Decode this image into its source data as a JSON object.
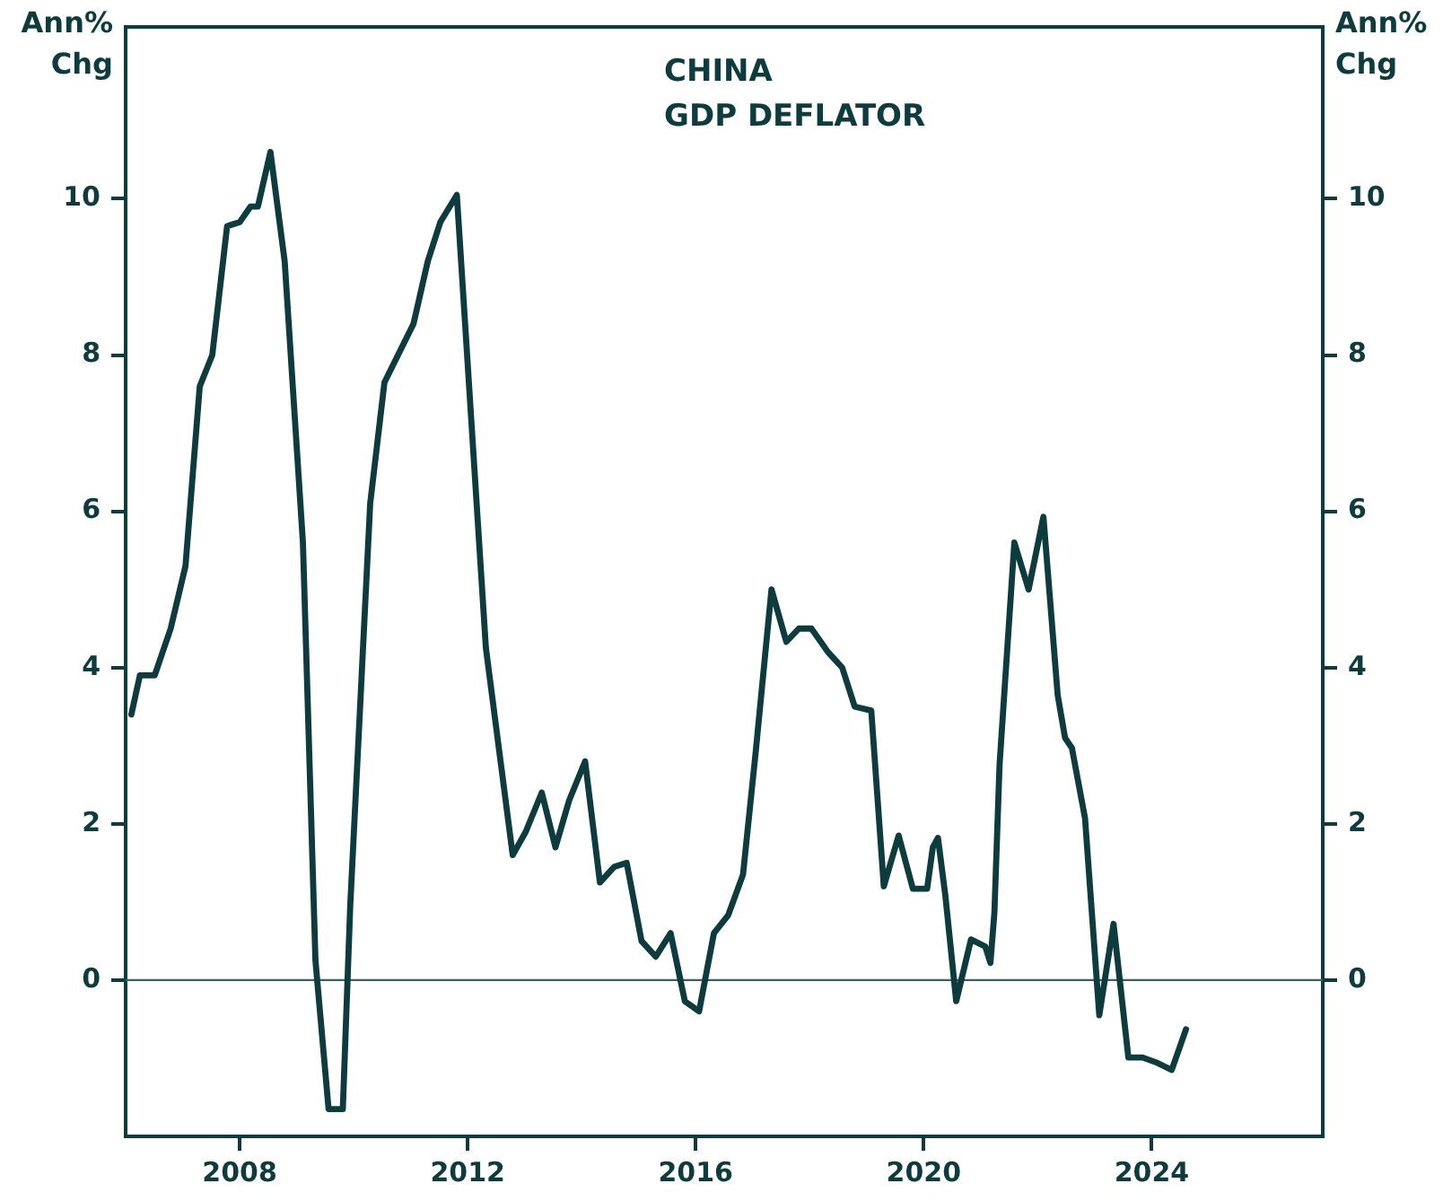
{
  "chart_data": {
    "type": "line",
    "title": "CHINA\nGDP DEFLATOR",
    "ylabel": "Ann%\nChg",
    "y2label": "Ann%\nChg",
    "series": [
      {
        "color": "#0e3b3e",
        "x": [
          2006.1,
          2006.25,
          2006.51,
          2006.79,
          2007.05,
          2007.3,
          2007.52,
          2007.78,
          2008.0,
          2008.19,
          2008.32,
          2008.54,
          2008.79,
          2009.11,
          2009.33,
          2009.56,
          2009.81,
          2009.94,
          2010.29,
          2010.54,
          2011.05,
          2011.3,
          2011.52,
          2011.81,
          2012.32,
          2012.79,
          2013.02,
          2013.3,
          2013.54,
          2013.78,
          2014.06,
          2014.32,
          2014.57,
          2014.79,
          2015.05,
          2015.3,
          2015.56,
          2015.81,
          2016.06,
          2016.32,
          2016.57,
          2016.83,
          2017.05,
          2017.33,
          2017.59,
          2017.81,
          2018.03,
          2018.32,
          2018.57,
          2018.79,
          2019.08,
          2019.3,
          2019.56,
          2019.81,
          2020.06,
          2020.16,
          2020.25,
          2020.38,
          2020.57,
          2020.83,
          2021.08,
          2021.17,
          2021.24,
          2021.33,
          2021.59,
          2021.84,
          2022.1,
          2022.35,
          2022.48,
          2022.6,
          2022.83,
          2023.08,
          2023.33,
          2023.59,
          2023.84,
          2024.1,
          2024.35,
          2024.6
        ],
        "values": [
          3.4,
          3.9,
          3.9,
          4.5,
          5.3,
          7.6,
          8.0,
          9.65,
          9.7,
          9.9,
          9.9,
          10.6,
          9.2,
          5.6,
          0.25,
          -1.65,
          -1.65,
          0.95,
          6.1,
          7.65,
          8.4,
          9.2,
          9.7,
          10.05,
          4.25,
          1.6,
          1.9,
          2.4,
          1.7,
          2.3,
          2.8,
          1.25,
          1.45,
          1.5,
          0.5,
          0.3,
          0.6,
          -0.27,
          -0.4,
          0.6,
          0.83,
          1.35,
          2.9,
          5.0,
          4.33,
          4.5,
          4.5,
          4.2,
          4.0,
          3.5,
          3.45,
          1.2,
          1.85,
          1.17,
          1.17,
          1.7,
          1.82,
          1.08,
          -0.27,
          0.52,
          0.43,
          0.22,
          0.86,
          2.75,
          5.6,
          5.0,
          5.93,
          3.65,
          3.1,
          2.97,
          2.07,
          -0.45,
          0.72,
          -0.99,
          -0.99,
          -1.06,
          -1.15,
          -0.63
        ]
      }
    ],
    "xlim": [
      2006,
      2027
    ],
    "xticks": [
      2008,
      2012,
      2016,
      2020,
      2024
    ],
    "ylim": [
      -2,
      12.2
    ],
    "yticks": [
      0,
      2,
      4,
      6,
      8,
      10
    ],
    "y2lim": [
      -2,
      12.2
    ],
    "y2ticks": [
      0,
      2,
      4,
      6,
      8,
      10
    ],
    "ref_lines": [
      {
        "axis": "y",
        "value": 0,
        "color": "#3d5f62"
      }
    ],
    "grid": false,
    "legend": false,
    "marker": "none",
    "line_style": "solid"
  }
}
